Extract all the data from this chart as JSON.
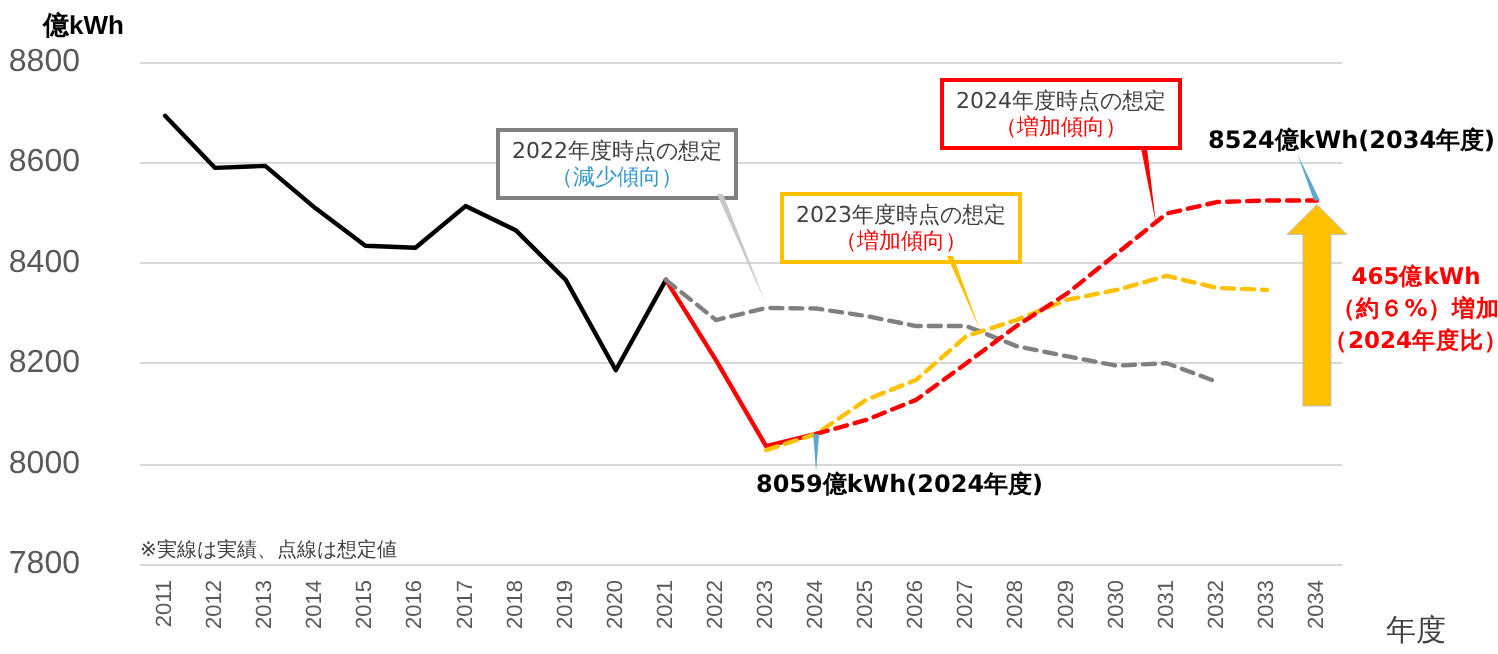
{
  "chart_data": {
    "type": "line",
    "ylabel": "億kWh",
    "xlabel": "年度",
    "categories": [
      "2011",
      "2012",
      "2013",
      "2014",
      "2015",
      "2016",
      "2017",
      "2018",
      "2019",
      "2020",
      "2021",
      "2022",
      "2023",
      "2024",
      "2025",
      "2026",
      "2027",
      "2028",
      "2029",
      "2030",
      "2031",
      "2032",
      "2033",
      "2034"
    ],
    "ylim": [
      7800,
      8800
    ],
    "yticks": [
      7800,
      8000,
      8200,
      8400,
      8600,
      8800
    ],
    "grid": "y",
    "marker": "none",
    "series": [
      {
        "color": "#000000",
        "line_style": "solid",
        "values": [
          8693,
          8589,
          8593,
          8509,
          8434,
          8430,
          8513,
          8465,
          8366,
          8186,
          8366,
          null,
          null,
          null,
          null,
          null,
          null,
          null,
          null,
          null,
          null,
          null,
          null,
          null
        ]
      },
      {
        "color": "#ff0000",
        "line_style": "solid",
        "values": [
          null,
          null,
          null,
          null,
          null,
          null,
          null,
          null,
          null,
          null,
          8366,
          8206,
          8035,
          8059,
          null,
          null,
          null,
          null,
          null,
          null,
          null,
          null,
          null,
          null
        ]
      },
      {
        "color": "#808080",
        "line_style": "dashed",
        "values": [
          null,
          null,
          null,
          null,
          null,
          null,
          null,
          null,
          null,
          null,
          8366,
          8286,
          8310,
          8309,
          8294,
          8274,
          8274,
          8234,
          8214,
          8195,
          8200,
          8163,
          null,
          null
        ]
      },
      {
        "color": "#ffc000",
        "line_style": "dashed",
        "values": [
          null,
          null,
          null,
          null,
          null,
          null,
          null,
          null,
          null,
          null,
          null,
          null,
          8027,
          8059,
          8127,
          8167,
          8254,
          8286,
          8326,
          8346,
          8374,
          8350,
          8346,
          null
        ]
      },
      {
        "color": "#ff0000",
        "line_style": "dashed",
        "values": [
          null,
          null,
          null,
          null,
          null,
          null,
          null,
          null,
          null,
          null,
          null,
          null,
          null,
          8059,
          8087,
          8127,
          8200,
          8274,
          8338,
          8418,
          8498,
          8521,
          8524,
          8524
        ]
      }
    ],
    "annotations": [
      "2022年度時点の想定",
      "（減少傾向）",
      "2023年度時点の想定",
      "（増加傾向）",
      "2024年度時点の想定",
      "（増加傾向）",
      {
        "text": "8059億kWh(2024年度)",
        "x": "2024",
        "y": 8059
      },
      {
        "text": "8524億kWh(2034年度)",
        "x": "2034",
        "y": 8524
      },
      "465億kWh",
      "（約６%）増加",
      "（2024年度比）",
      "※実線は実績、点線は想定値"
    ]
  }
}
